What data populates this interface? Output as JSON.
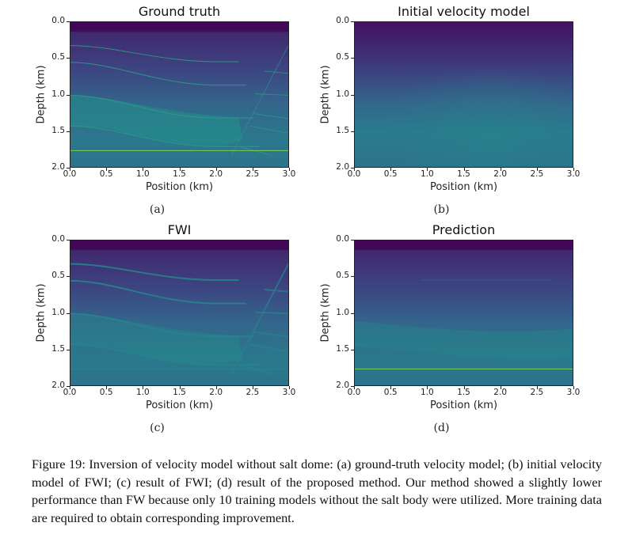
{
  "figure": {
    "caption": "Figure 19: Inversion of velocity model without salt dome: (a) ground-truth velocity model; (b) initial velocity model of FWI; (c) result of FWI; (d) result of the proposed method. Our method showed a slightly lower performance than FW because only 10 training models without the salt body were utilized. More training data are required to obtain corresponding improvement.",
    "colormap": "viridis"
  },
  "chart_data": [
    {
      "type": "heatmap",
      "panel_label": "(a)",
      "title": "Ground truth",
      "xlabel": "Position (km)",
      "ylabel": "Depth (km)",
      "xlim": [
        0.0,
        3.0
      ],
      "ylim": [
        2.0,
        0.0
      ],
      "xticks": [
        "0.0",
        "0.5",
        "1.0",
        "1.5",
        "2.0",
        "2.5",
        "3.0"
      ],
      "yticks": [
        "0.0",
        "0.5",
        "1.0",
        "1.5",
        "2.0"
      ],
      "description": "Layered velocity model with dipping reflectors and a fault near 2.3-3.0 km; bright reflector at ~1.75 km depth",
      "model": "truth"
    },
    {
      "type": "heatmap",
      "panel_label": "(b)",
      "title": "Initial velocity model",
      "xlabel": "Position (km)",
      "ylabel": "Depth (km)",
      "xlim": [
        0.0,
        3.0
      ],
      "ylim": [
        2.0,
        0.0
      ],
      "xticks": [
        "0.0",
        "0.5",
        "1.0",
        "1.5",
        "2.0",
        "2.5",
        "3.0"
      ],
      "yticks": [
        "0.0",
        "0.5",
        "1.0",
        "1.5",
        "2.0"
      ],
      "description": "Smooth background velocity increasing with depth, maximum near 2.0 km / 1.5 km depth",
      "model": "smooth"
    },
    {
      "type": "heatmap",
      "panel_label": "(c)",
      "title": "FWI",
      "xlabel": "Position (km)",
      "ylabel": "Depth (km)",
      "xlim": [
        0.0,
        3.0
      ],
      "ylim": [
        2.0,
        0.0
      ],
      "xticks": [
        "0.0",
        "0.5",
        "1.0",
        "1.5",
        "2.0",
        "2.5",
        "3.0"
      ],
      "yticks": [
        "0.0",
        "0.5",
        "1.0",
        "1.5",
        "2.0"
      ],
      "description": "FWI result recovering layers and fault with smoother reflectors",
      "model": "fwi"
    },
    {
      "type": "heatmap",
      "panel_label": "(d)",
      "title": "Prediction",
      "xlabel": "Position (km)",
      "ylabel": "Depth (km)",
      "xlim": [
        0.0,
        3.0
      ],
      "ylim": [
        2.0,
        0.0
      ],
      "xticks": [
        "0.0",
        "0.5",
        "1.0",
        "1.5",
        "2.0",
        "2.5",
        "3.0"
      ],
      "yticks": [
        "0.0",
        "0.5",
        "1.0",
        "1.5",
        "2.0"
      ],
      "description": "Network prediction with noisy layers and a bright horizontal reflector at ~1.75 km",
      "model": "pred"
    }
  ]
}
